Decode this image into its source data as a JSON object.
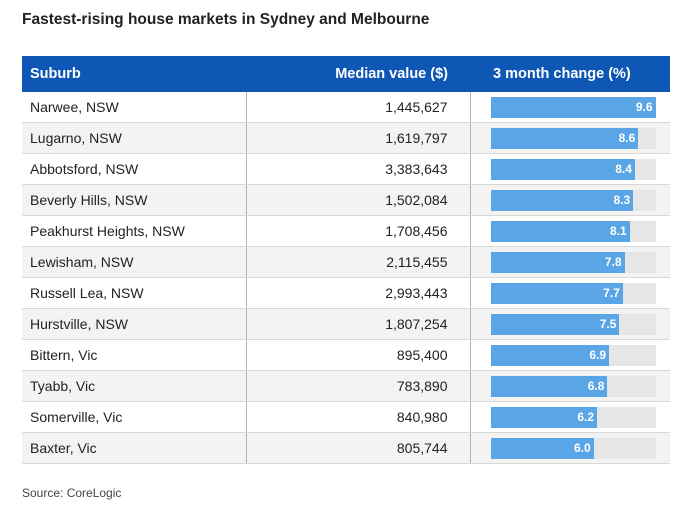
{
  "title": "Fastest-rising house markets in Sydney and Melbourne",
  "source": "Source: CoreLogic",
  "colors": {
    "header": "#0e57b5",
    "bar": "#5aa5e5",
    "track": "#e6e6e6"
  },
  "chart_data": {
    "type": "table",
    "columns": [
      "Suburb",
      "Median value ($)",
      "3 month change (%)"
    ],
    "bar_max": 9.6,
    "rows": [
      {
        "suburb": "Narwee, NSW",
        "median": "1,445,627",
        "change": 9.6
      },
      {
        "suburb": "Lugarno, NSW",
        "median": "1,619,797",
        "change": 8.6
      },
      {
        "suburb": "Abbotsford, NSW",
        "median": "3,383,643",
        "change": 8.4
      },
      {
        "suburb": "Beverly Hills, NSW",
        "median": "1,502,084",
        "change": 8.3
      },
      {
        "suburb": "Peakhurst Heights, NSW",
        "median": "1,708,456",
        "change": 8.1
      },
      {
        "suburb": "Lewisham, NSW",
        "median": "2,115,455",
        "change": 7.8
      },
      {
        "suburb": "Russell Lea, NSW",
        "median": "2,993,443",
        "change": 7.7
      },
      {
        "suburb": "Hurstville, NSW",
        "median": "1,807,254",
        "change": 7.5
      },
      {
        "suburb": "Bittern, Vic",
        "median": "895,400",
        "change": 6.9
      },
      {
        "suburb": "Tyabb, Vic",
        "median": "783,890",
        "change": 6.8
      },
      {
        "suburb": "Somerville, Vic",
        "median": "840,980",
        "change": 6.2
      },
      {
        "suburb": "Baxter, Vic",
        "median": "805,744",
        "change": 6.0
      }
    ]
  }
}
